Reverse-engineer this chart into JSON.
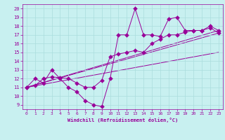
{
  "xlabel": "Windchill (Refroidissement éolien,°C)",
  "bg_color": "#c8f0f0",
  "line_color": "#990099",
  "grid_color": "#aadddd",
  "xlim": [
    -0.5,
    23.5
  ],
  "ylim": [
    8.5,
    20.5
  ],
  "xticks": [
    0,
    1,
    2,
    3,
    4,
    5,
    6,
    7,
    8,
    9,
    10,
    11,
    12,
    13,
    14,
    15,
    16,
    17,
    18,
    19,
    20,
    21,
    22,
    23
  ],
  "yticks": [
    9,
    10,
    11,
    12,
    13,
    14,
    15,
    16,
    17,
    18,
    19,
    20
  ],
  "series1_x": [
    0,
    1,
    2,
    3,
    4,
    5,
    6,
    7,
    8,
    9,
    10,
    11,
    12,
    13,
    14,
    15,
    16,
    17,
    18,
    19,
    20,
    21,
    22,
    23
  ],
  "series1_y": [
    11,
    12,
    11.5,
    13,
    12,
    11,
    10.5,
    9.5,
    9,
    8.8,
    12,
    17,
    17,
    20,
    17,
    17,
    16.8,
    18.8,
    19,
    17.5,
    17.5,
    17.5,
    18,
    17.5
  ],
  "series2_x": [
    0,
    1,
    2,
    3,
    4,
    5,
    6,
    7,
    8,
    9,
    10,
    11,
    12,
    13,
    14,
    15,
    16,
    17,
    18,
    19,
    20,
    21,
    22,
    23
  ],
  "series2_y": [
    11,
    11.2,
    12,
    12.2,
    12.1,
    12,
    11.5,
    11,
    11,
    11.8,
    14.5,
    14.8,
    15,
    15.2,
    15,
    16,
    16.5,
    17,
    17,
    17.3,
    17.5,
    17.5,
    17.8,
    17.2
  ],
  "trend1_x": [
    0,
    23
  ],
  "trend1_y": [
    11,
    15
  ],
  "trend2_x": [
    0,
    23
  ],
  "trend2_y": [
    11,
    17.5
  ],
  "trend3_x": [
    0,
    23
  ],
  "trend3_y": [
    11,
    17.2
  ],
  "markersize": 3
}
